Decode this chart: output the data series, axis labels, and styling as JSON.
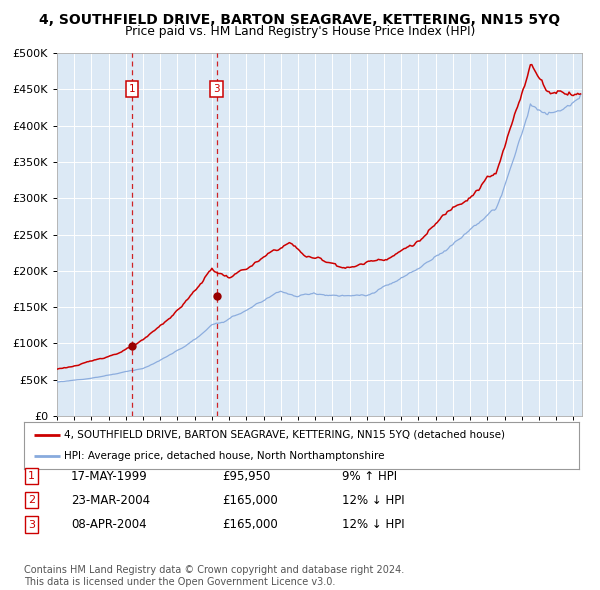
{
  "title": "4, SOUTHFIELD DRIVE, BARTON SEAGRAVE, KETTERING, NN15 5YQ",
  "subtitle": "Price paid vs. HM Land Registry's House Price Index (HPI)",
  "fig_bg_color": "#ffffff",
  "plot_bg_color": "#dce9f5",
  "red_line_color": "#cc0000",
  "blue_line_color": "#88aadd",
  "grid_color": "#ffffff",
  "ylim": [
    0,
    500000
  ],
  "yticks": [
    0,
    50000,
    100000,
    150000,
    200000,
    250000,
    300000,
    350000,
    400000,
    450000,
    500000
  ],
  "xlim_start": 1995,
  "xlim_end": 2025.5,
  "legend_label_red": "4, SOUTHFIELD DRIVE, BARTON SEAGRAVE, KETTERING, NN15 5YQ (detached house)",
  "legend_label_blue": "HPI: Average price, detached house, North Northamptonshire",
  "transaction1_date": 1999.37,
  "transaction1_price": 95950,
  "transaction3_date": 2004.27,
  "transaction3_price": 165000,
  "footnote": "Contains HM Land Registry data © Crown copyright and database right 2024.\nThis data is licensed under the Open Government Licence v3.0.",
  "table_rows": [
    [
      "1",
      "17-MAY-1999",
      "£95,950",
      "9% ↑ HPI"
    ],
    [
      "2",
      "23-MAR-2004",
      "£165,000",
      "12% ↓ HPI"
    ],
    [
      "3",
      "08-APR-2004",
      "£165,000",
      "12% ↓ HPI"
    ]
  ]
}
